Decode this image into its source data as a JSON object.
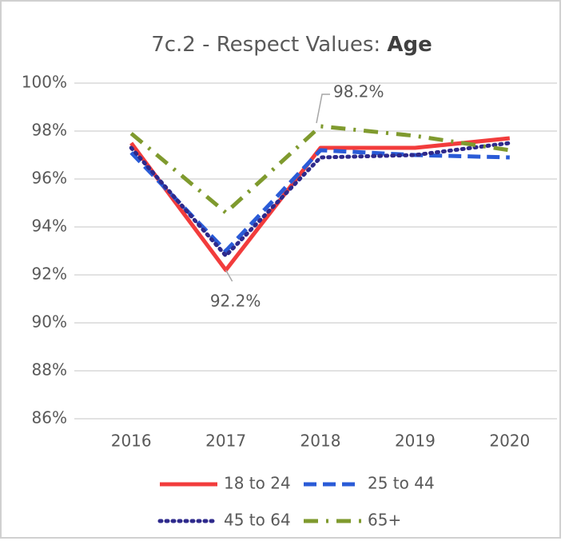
{
  "chart_data": {
    "type": "line",
    "title": [
      "7c.2 - Respect Values:",
      "Age"
    ],
    "categories": [
      "2016",
      "2017",
      "2018",
      "2019",
      "2020"
    ],
    "series": [
      {
        "name": "18 to 24",
        "color": "#f23c3c",
        "style": "solid",
        "values": [
          97.5,
          92.2,
          97.3,
          97.3,
          97.7
        ],
        "value_labels": [
          null,
          "92.2%",
          null,
          null,
          null
        ]
      },
      {
        "name": "25 to 44",
        "color": "#2a5bd7",
        "style": "dashed",
        "values": [
          97.1,
          93.0,
          97.2,
          97.0,
          96.9
        ]
      },
      {
        "name": "45 to 64",
        "color": "#2e2a8c",
        "style": "dotted",
        "values": [
          97.3,
          92.8,
          96.9,
          97.0,
          97.5
        ]
      },
      {
        "name": "65+",
        "color": "#7f9a2e",
        "style": "dashdot",
        "values": [
          97.9,
          94.6,
          98.2,
          97.8,
          97.2
        ],
        "value_labels": [
          null,
          null,
          "98.2%",
          null,
          null
        ]
      }
    ],
    "ylim": [
      86,
      100
    ],
    "yticks": [
      {
        "value": 86,
        "label": "86%"
      },
      {
        "value": 88,
        "label": "88%"
      },
      {
        "value": 90,
        "label": "90%"
      },
      {
        "value": 92,
        "label": "92%"
      },
      {
        "value": 94,
        "label": "94%"
      },
      {
        "value": 96,
        "label": "96%"
      },
      {
        "value": 98,
        "label": "98%"
      },
      {
        "value": 100,
        "label": "100%"
      }
    ],
    "grid": true
  }
}
